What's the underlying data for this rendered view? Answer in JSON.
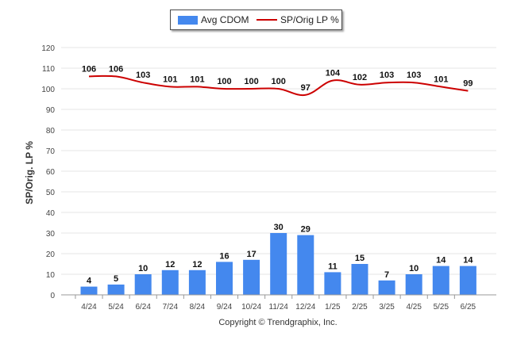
{
  "chart_data": {
    "type": "bar",
    "categories": [
      "4/24",
      "5/24",
      "6/24",
      "7/24",
      "8/24",
      "9/24",
      "10/24",
      "11/24",
      "12/24",
      "1/25",
      "2/25",
      "3/25",
      "4/25",
      "5/25",
      "6/25"
    ],
    "series": [
      {
        "name": "Avg CDOM",
        "type": "bar",
        "values": [
          4,
          5,
          10,
          12,
          12,
          16,
          17,
          30,
          29,
          11,
          15,
          7,
          10,
          14,
          14
        ],
        "color": "#4488ee"
      },
      {
        "name": "SP/Orig LP %",
        "type": "line",
        "values": [
          106,
          106,
          103,
          101,
          101,
          100,
          100,
          100,
          97,
          104,
          102,
          103,
          103,
          101,
          99
        ],
        "color": "#cc0000"
      }
    ],
    "ylabel": "SP/Orig. LP %",
    "ylim": [
      0,
      120
    ],
    "yticks": [
      0,
      10,
      20,
      30,
      40,
      50,
      60,
      70,
      80,
      90,
      100,
      110,
      120
    ],
    "grid": true,
    "legend": "top-center"
  },
  "legend": {
    "bar_label": "Avg CDOM",
    "line_label": "SP/Orig LP %"
  },
  "footer": {
    "copyright": "Copyright © Trendgraphix, Inc."
  }
}
